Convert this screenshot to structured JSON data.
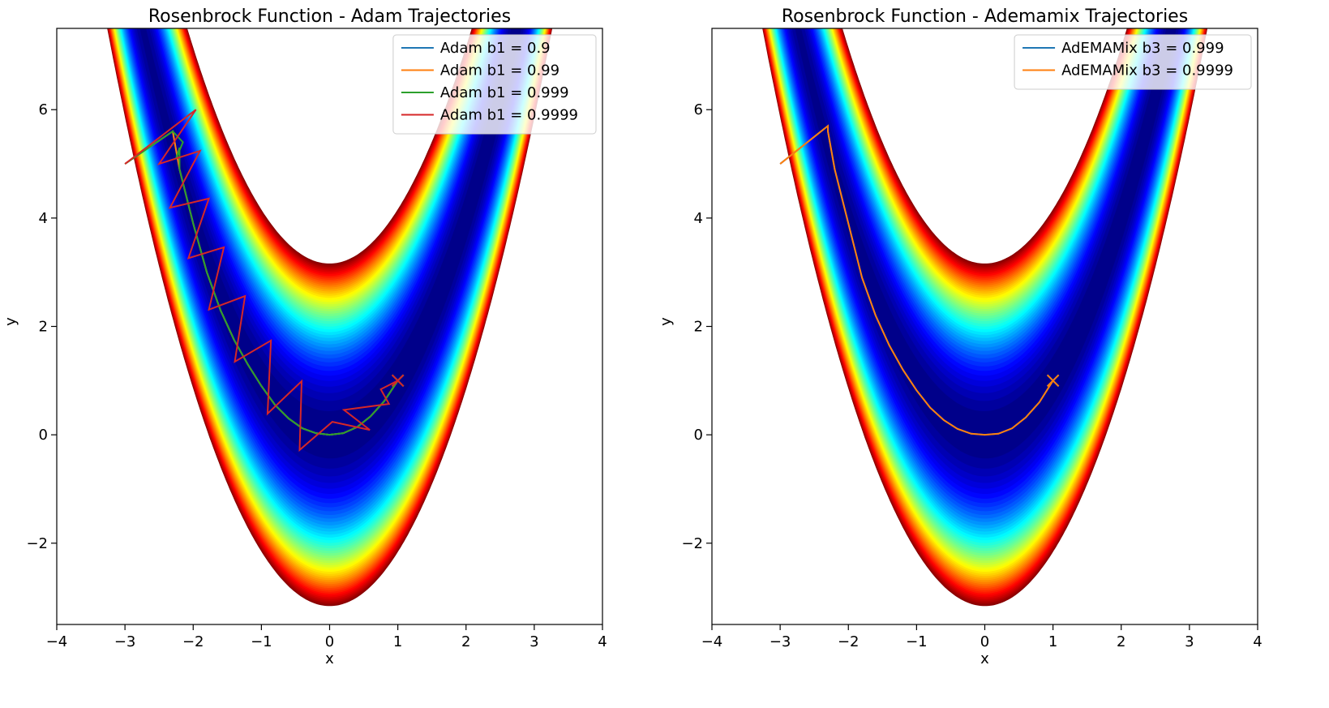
{
  "chart_data": [
    {
      "type": "line",
      "title": "Rosenbrock Function - Adam Trajectories",
      "x_label": "x",
      "y_label": "y",
      "xlim": [
        -4,
        4
      ],
      "ylim": [
        -3.5,
        7.5
      ],
      "xticks": [
        {
          "value": -4,
          "label": "−4"
        },
        {
          "value": -3,
          "label": "−3"
        },
        {
          "value": -2,
          "label": "−2"
        },
        {
          "value": -1,
          "label": "−1"
        },
        0,
        1,
        2,
        3,
        4
      ],
      "yticks": [
        {
          "value": -2,
          "label": "−2"
        },
        0,
        2,
        4,
        6
      ],
      "legend": "upper right",
      "series": [
        {
          "name": "Adam b1 = 0.9",
          "color": "#1f77b4",
          "x": [
            -3,
            -2.3,
            -2.2,
            -2.0,
            -1.8,
            -1.6,
            -1.4,
            -1.2,
            -1.0,
            -0.8,
            -0.6,
            -0.4,
            -0.2,
            0,
            0.2,
            0.4,
            0.6,
            0.8,
            1.0
          ],
          "values": [
            5,
            5.6,
            4.9,
            3.9,
            3.0,
            2.3,
            1.75,
            1.3,
            0.9,
            0.55,
            0.3,
            0.12,
            0.03,
            0,
            0.03,
            0.14,
            0.34,
            0.62,
            1.0
          ]
        },
        {
          "name": "Adam b1 = 0.99",
          "color": "#ff7f0e",
          "x": [
            -3,
            -2.3,
            -2.2,
            -2.0,
            -1.8,
            -1.6,
            -1.4,
            -1.2,
            -1.0,
            -0.8,
            -0.6,
            -0.4,
            -0.2,
            0,
            0.2,
            0.4,
            0.6,
            0.8,
            1.0
          ],
          "values": [
            5,
            5.6,
            4.9,
            3.9,
            3.0,
            2.3,
            1.75,
            1.3,
            0.9,
            0.55,
            0.3,
            0.12,
            0.03,
            0,
            0.03,
            0.14,
            0.34,
            0.62,
            1.0
          ]
        },
        {
          "name": "Adam b1 = 0.999",
          "color": "#2ca02c",
          "x": [
            -3,
            -2.3,
            -2.15,
            -2.25,
            -2.2,
            -2.2,
            -2.0,
            -1.8,
            -1.6,
            -1.4,
            -1.2,
            -1.0,
            -0.8,
            -0.6,
            -0.4,
            -0.2,
            0,
            0.2,
            0.4,
            0.6,
            0.8,
            1.0
          ],
          "values": [
            5,
            5.6,
            5.4,
            5.1,
            5.3,
            4.9,
            3.9,
            3.0,
            2.3,
            1.75,
            1.3,
            0.9,
            0.55,
            0.3,
            0.12,
            0.03,
            0,
            0.03,
            0.14,
            0.34,
            0.62,
            1.0
          ]
        },
        {
          "name": "Adam b1 = 0.9999",
          "color": "#d62728",
          "x": [
            -3.0,
            -1.96,
            -2.5,
            -1.9,
            -2.34,
            -1.77,
            -2.07,
            -1.55,
            -1.77,
            -1.24,
            -1.39,
            -0.86,
            -0.91,
            -0.41,
            -0.44,
            0.04,
            0.59,
            0.21,
            0.87,
            0.75,
            1.0
          ],
          "values": [
            5.0,
            6.0,
            5.0,
            5.24,
            4.19,
            4.36,
            3.26,
            3.46,
            2.31,
            2.56,
            1.35,
            1.74,
            0.39,
            0.99,
            -0.28,
            0.24,
            0.09,
            0.46,
            0.57,
            0.84,
            1.0
          ]
        }
      ]
    },
    {
      "type": "line",
      "title": "Rosenbrock Function - Ademamix Trajectories",
      "x_label": "x",
      "y_label": "y",
      "xlim": [
        -4,
        4
      ],
      "ylim": [
        -3.5,
        7.5
      ],
      "xticks": [
        {
          "value": -4,
          "label": "−4"
        },
        {
          "value": -3,
          "label": "−3"
        },
        {
          "value": -2,
          "label": "−2"
        },
        {
          "value": -1,
          "label": "−1"
        },
        0,
        1,
        2,
        3,
        4
      ],
      "yticks": [
        {
          "value": -2,
          "label": "−2"
        },
        0,
        2,
        4,
        6
      ],
      "legend": "upper right",
      "series": [
        {
          "name": "AdEMAMix b3 = 0.999",
          "color": "#1f77b4",
          "x": [
            -3,
            -2.3,
            -2.3,
            -2.2,
            -2.0,
            -1.8,
            -1.6,
            -1.4,
            -1.2,
            -1.0,
            -0.8,
            -0.6,
            -0.4,
            -0.2,
            0,
            0.2,
            0.4,
            0.6,
            0.8,
            1.0
          ],
          "values": [
            5,
            5.7,
            5.6,
            4.9,
            3.9,
            2.9,
            2.2,
            1.65,
            1.2,
            0.82,
            0.5,
            0.27,
            0.11,
            0.02,
            0,
            0.02,
            0.12,
            0.32,
            0.6,
            1.0
          ]
        },
        {
          "name": "AdEMAMix b3 = 0.9999",
          "color": "#ff7f0e",
          "x": [
            -3,
            -2.3,
            -2.3,
            -2.2,
            -2.0,
            -1.8,
            -1.6,
            -1.4,
            -1.2,
            -1.0,
            -0.8,
            -0.6,
            -0.4,
            -0.2,
            0,
            0.2,
            0.4,
            0.6,
            0.8,
            1.0
          ],
          "values": [
            5,
            5.7,
            5.6,
            4.9,
            3.9,
            2.9,
            2.2,
            1.65,
            1.2,
            0.82,
            0.5,
            0.27,
            0.11,
            0.02,
            0,
            0.02,
            0.12,
            0.32,
            0.6,
            1.0
          ]
        }
      ]
    }
  ]
}
